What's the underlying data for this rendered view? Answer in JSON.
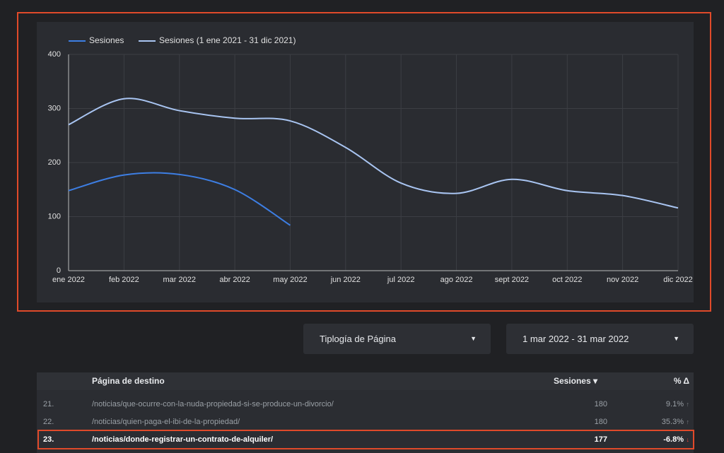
{
  "chart_data": {
    "type": "line",
    "categories": [
      "ene 2022",
      "feb 2022",
      "mar 2022",
      "abr 2022",
      "may 2022",
      "jun 2022",
      "jul 2022",
      "ago 2022",
      "sept 2022",
      "oct 2022",
      "nov 2022",
      "dic 2022"
    ],
    "series": [
      {
        "name": "Sesiones",
        "color": "#3d7ee3",
        "values": [
          148,
          177,
          178,
          150,
          84,
          null,
          null,
          null,
          null,
          null,
          null,
          null
        ]
      },
      {
        "name": "Sesiones (1 ene 2021 - 31 dic 2021)",
        "color": "#a9c5f2",
        "values": [
          270,
          318,
          296,
          282,
          277,
          228,
          162,
          143,
          169,
          148,
          139,
          116
        ]
      }
    ],
    "ylim": [
      0,
      400
    ],
    "yticks": [
      0,
      100,
      200,
      300,
      400
    ],
    "grid": true
  },
  "controls": {
    "dimension": "Tiplogía de Página",
    "date_range": "1 mar 2022 - 31 mar 2022"
  },
  "table": {
    "headers": [
      "Página de destino",
      "Sesiones",
      "% Δ"
    ],
    "rows": [
      [
        "21.",
        "/noticias/que-ocurre-con-la-nuda-propiedad-si-se-produce-un-divorcio/",
        "180",
        "9.1%"
      ],
      [
        "22.",
        "/noticias/quien-paga-el-ibi-de-la-propiedad/",
        "180",
        "35.3%"
      ],
      [
        "23.",
        "/noticias/donde-registrar-un-contrato-de-alquiler/",
        "177",
        "-6.8%"
      ]
    ]
  }
}
